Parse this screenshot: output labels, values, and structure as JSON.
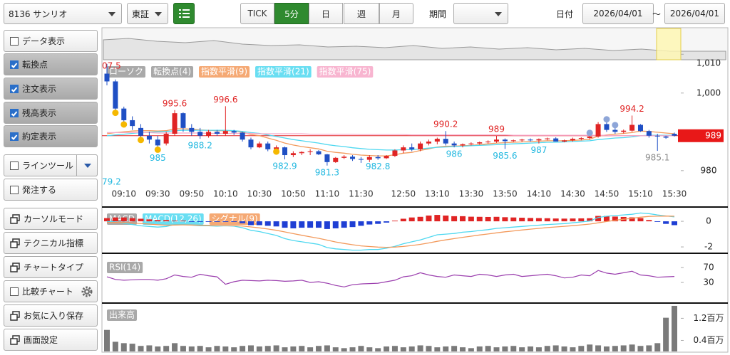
{
  "toolbar": {
    "symbol": "8136 サンリオ",
    "market": "東証",
    "timeframes": [
      "TICK",
      "5分",
      "日",
      "週",
      "月"
    ],
    "active_timeframe": "5分",
    "period_label": "期間",
    "date_label": "日付",
    "date_from": "2026/04/01",
    "separator": "～",
    "date_to": "2026/04/01"
  },
  "sidebar": {
    "buttons": [
      {
        "label": "データ表示",
        "kind": "checkbox",
        "checked": false
      },
      {
        "label": "転換点",
        "kind": "checkbox",
        "checked": true
      },
      {
        "label": "注文表示",
        "kind": "checkbox",
        "checked": true
      },
      {
        "label": "残高表示",
        "kind": "checkbox",
        "checked": true
      },
      {
        "label": "約定表示",
        "kind": "checkbox",
        "checked": true
      },
      {
        "label": "ラインツール",
        "kind": "checkbox",
        "checked": false,
        "dropdown": true
      },
      {
        "label": "発注する",
        "kind": "checkbox",
        "checked": false
      },
      {
        "label": "カーソルモード",
        "kind": "icon"
      },
      {
        "label": "テクニカル指標",
        "kind": "icon"
      },
      {
        "label": "チャートタイプ",
        "kind": "icon"
      },
      {
        "label": "比較チャート",
        "kind": "checkbox",
        "checked": false,
        "settings": true
      },
      {
        "label": "お気に入り保存",
        "kind": "icon"
      },
      {
        "label": "画面設定",
        "kind": "icon"
      }
    ]
  },
  "chart_data": [
    {
      "type": "candlestick",
      "legend": [
        "ローソク",
        "転換点(4)"
      ],
      "categories": [
        null,
        null,
        "09:10",
        null,
        null,
        null,
        "09:30",
        null,
        null,
        null,
        "09:50",
        null,
        null,
        null,
        "10:10",
        null,
        null,
        null,
        "10:30",
        null,
        null,
        null,
        "10:50",
        null,
        null,
        null,
        "11:10",
        null,
        null,
        null,
        "11:30",
        null,
        null,
        null,
        null,
        "12:50",
        null,
        null,
        null,
        "13:10",
        null,
        null,
        null,
        "13:30",
        null,
        null,
        null,
        "13:50",
        null,
        null,
        null,
        "14:10",
        null,
        null,
        null,
        "14:30",
        null,
        null,
        null,
        "14:50",
        null,
        null,
        null,
        "15:10",
        null,
        null,
        null,
        "15:30"
      ],
      "open": [
        1005,
        1003,
        996,
        993,
        991,
        989,
        988,
        987,
        989.5,
        994.8,
        991,
        990,
        989,
        990,
        989.5,
        990.2,
        989.8,
        988,
        986,
        987,
        985.5,
        986,
        984,
        984.5,
        984.8,
        985,
        984.2,
        982.2,
        983.3,
        983.6,
        983,
        982.8,
        983.5,
        983.2,
        983.8,
        985.2,
        986,
        985.5,
        987,
        987.5,
        988.2,
        987,
        986.5,
        986.8,
        987,
        987.3,
        987.5,
        988,
        987.6,
        987.8,
        988,
        987.8,
        988.1,
        988.3,
        987.5,
        987.8,
        988.2,
        988.4,
        988.8,
        992,
        990.5,
        990,
        990.3,
        991.8,
        990.2,
        989,
        988.8,
        989.5
      ],
      "high": [
        1007.5,
        1003.5,
        996.5,
        994,
        992,
        990,
        989,
        990,
        995.6,
        995,
        992,
        991,
        990.5,
        990.5,
        996.6,
        990.5,
        990,
        988.5,
        987.5,
        987.5,
        986.5,
        986.2,
        985,
        985,
        985.5,
        985.3,
        984.3,
        983.5,
        984,
        984,
        983.5,
        984,
        984,
        984,
        985.5,
        986.5,
        987,
        987.5,
        988,
        988.5,
        990.2,
        987.5,
        987,
        987.3,
        987.5,
        987.8,
        989,
        988.3,
        988,
        988.2,
        988.3,
        988.3,
        988.5,
        988.6,
        988,
        988.5,
        988.6,
        989,
        992.5,
        992.5,
        991,
        990.6,
        994.2,
        992,
        990.5,
        989.5,
        989,
        989.8
      ],
      "low": [
        1002,
        995,
        992,
        990.5,
        988,
        987,
        985,
        986.5,
        989,
        990,
        989,
        988.2,
        988.5,
        989,
        989,
        989.2,
        987.5,
        985.5,
        985.8,
        985,
        985,
        982.9,
        983.5,
        984,
        984,
        984,
        981.3,
        982,
        983,
        982.5,
        982,
        982.2,
        982.8,
        983,
        983.5,
        984.5,
        985,
        985,
        986.5,
        986.8,
        986.5,
        986,
        986,
        986.5,
        986.7,
        987,
        987.2,
        985.6,
        987.4,
        987.4,
        987.5,
        987,
        987.8,
        987.5,
        987.3,
        987.5,
        987.8,
        988,
        988.5,
        990,
        989.5,
        989.6,
        990,
        990,
        988.5,
        985.1,
        988.2,
        988.8
      ],
      "close": [
        1003,
        996,
        993,
        991.5,
        989,
        988,
        986.5,
        989.5,
        994.8,
        991,
        990,
        989,
        990,
        989.5,
        990.2,
        989.8,
        988,
        986,
        987,
        985.5,
        986,
        984,
        984.5,
        984.8,
        985,
        984.2,
        982.2,
        983.3,
        983.6,
        983,
        982.8,
        983.5,
        983.2,
        983.8,
        985.2,
        986,
        985.5,
        987,
        987.5,
        988.2,
        987,
        986.5,
        986.8,
        987,
        987.3,
        987.5,
        988,
        987.6,
        987.8,
        988,
        987.8,
        988.1,
        988.3,
        987.5,
        987.8,
        988.2,
        988.4,
        988.8,
        992,
        990.5,
        990,
        990.3,
        991.8,
        990.2,
        989,
        988.8,
        988.5,
        989
      ],
      "series": [
        {
          "name": "指数平滑(9)",
          "color": "#f39a5c",
          "values": [
            989.5,
            989.8,
            990,
            990.2,
            990.3,
            990.3,
            990.2,
            990.3,
            990.8,
            990.8,
            990.7,
            990.5,
            990.4,
            990.3,
            990.3,
            990.2,
            989.9,
            989.3,
            989,
            988.4,
            987.8,
            987.1,
            986.6,
            986.2,
            985.9,
            985.6,
            985,
            984.7,
            984.5,
            984.2,
            984,
            983.9,
            983.8,
            983.8,
            984.1,
            984.5,
            984.7,
            985.2,
            985.6,
            986.1,
            986.3,
            986.3,
            986.4,
            986.5,
            986.7,
            986.9,
            987.1,
            987.2,
            987.3,
            987.4,
            987.5,
            987.6,
            987.7,
            987.7,
            987.7,
            987.8,
            987.9,
            988.1,
            988.9,
            989.2,
            989.4,
            989.6,
            989.8,
            990.2,
            990.1,
            989.9,
            989.7,
            989.5
          ]
        },
        {
          "name": "指数平滑(21)",
          "color": "#4fd8f0",
          "values": [
            989,
            989.2,
            989.4,
            989.6,
            989.8,
            989.9,
            990,
            990.1,
            990.3,
            990.4,
            990.4,
            990.4,
            990.4,
            990.4,
            990.4,
            990.3,
            990.1,
            989.8,
            989.6,
            989.2,
            988.8,
            988.4,
            988,
            987.7,
            987.4,
            987.1,
            986.7,
            986.4,
            986.2,
            985.9,
            985.7,
            985.5,
            985.4,
            985.3,
            985.3,
            985.4,
            985.4,
            985.6,
            985.8,
            986,
            986.1,
            986.2,
            986.3,
            986.4,
            986.5,
            986.6,
            986.7,
            986.8,
            986.9,
            987,
            987.1,
            987.2,
            987.3,
            987.3,
            987.4,
            987.5,
            987.6,
            987.7,
            988,
            988.2,
            988.4,
            988.5,
            988.7,
            989,
            989.1,
            989.1,
            989.1,
            989.1
          ]
        },
        {
          "name": "指数平滑(75)",
          "color": "#f7a8c8",
          "values": [
            989.8,
            989.8,
            989.8,
            989.8,
            989.8,
            989.8,
            989.7,
            989.7,
            989.7,
            989.7,
            989.7,
            989.7,
            989.6,
            989.6,
            989.6,
            989.6,
            989.6,
            989.6,
            989.5,
            989.5,
            989.5,
            989.5,
            989.5,
            989.5,
            989.4,
            989.4,
            989.4,
            989.4,
            989.4,
            989.4,
            989.3,
            989.3,
            989.3,
            989.3,
            989.3,
            989.3,
            989.2,
            989.2,
            989.2,
            989.2,
            989.2,
            989.2,
            989.2,
            989.2,
            989.2,
            989.2,
            989.2,
            989.2,
            989.1,
            989.1,
            989.1,
            989.1,
            989.1,
            989.1,
            989.1,
            989.1,
            989.1,
            989.1,
            989.1,
            989.1,
            989,
            989,
            989,
            989,
            989,
            989,
            989,
            989
          ]
        }
      ],
      "annotations": [
        "07.5",
        "79.2"
      ],
      "last_price": 989,
      "up_color": "#e02424",
      "down_color": "#1f4fc4",
      "ylim": [
        970.8,
        1008.4
      ],
      "yticks": [
        980,
        {
          "value": 1000,
          "label": "1,000"
        },
        {
          "value": 1010,
          "label": "1,010"
        }
      ]
    },
    {
      "type": "macd",
      "title": "MACD",
      "series": [
        {
          "name": "MACD(12,26)",
          "color": "#4fd8f0",
          "values": [
            0,
            -0.05,
            -0.15,
            -0.25,
            -0.35,
            -0.4,
            -0.45,
            -0.4,
            -0.25,
            -0.25,
            -0.3,
            -0.35,
            -0.35,
            -0.38,
            -0.35,
            -0.38,
            -0.5,
            -0.7,
            -0.8,
            -0.95,
            -1.1,
            -1.35,
            -1.5,
            -1.6,
            -1.7,
            -1.8,
            -2.05,
            -2.15,
            -2.2,
            -2.25,
            -2.25,
            -2.2,
            -2.2,
            -2.1,
            -1.95,
            -1.75,
            -1.6,
            -1.45,
            -1.25,
            -1.05,
            -1,
            -0.95,
            -0.85,
            -0.8,
            -0.72,
            -0.65,
            -0.55,
            -0.5,
            -0.45,
            -0.4,
            -0.35,
            -0.3,
            -0.25,
            -0.22,
            -0.18,
            -0.12,
            -0.05,
            0.02,
            0.3,
            0.4,
            0.45,
            0.5,
            0.55,
            0.65,
            0.6,
            0.5,
            0.42,
            0.35
          ]
        },
        {
          "name": "シグナル(9)",
          "color": "#f39a5c",
          "values": [
            -0.1,
            -0.09,
            -0.1,
            -0.13,
            -0.17,
            -0.22,
            -0.27,
            -0.3,
            -0.29,
            -0.28,
            -0.29,
            -0.3,
            -0.31,
            -0.33,
            -0.33,
            -0.34,
            -0.37,
            -0.44,
            -0.51,
            -0.6,
            -0.7,
            -0.83,
            -0.96,
            -1.09,
            -1.21,
            -1.33,
            -1.47,
            -1.61,
            -1.73,
            -1.83,
            -1.92,
            -1.97,
            -2.01,
            -2.03,
            -2.01,
            -1.96,
            -1.89,
            -1.8,
            -1.69,
            -1.56,
            -1.45,
            -1.35,
            -1.25,
            -1.16,
            -1.07,
            -0.99,
            -0.9,
            -0.82,
            -0.75,
            -0.68,
            -0.61,
            -0.55,
            -0.49,
            -0.44,
            -0.39,
            -0.34,
            -0.28,
            -0.22,
            -0.12,
            -0.02,
            0.08,
            0.16,
            0.24,
            0.32,
            0.38,
            0.4,
            0.41,
            0.4
          ]
        }
      ],
      "histogram": [
        0.25,
        0.3,
        0.3,
        0.25,
        0.2,
        0.15,
        0.1,
        0.1,
        0.05,
        0.05,
        -0.05,
        -0.05,
        -0.05,
        -0.05,
        -0.05,
        -0.05,
        -0.15,
        -0.3,
        -0.3,
        -0.35,
        -0.4,
        -0.5,
        -0.55,
        -0.5,
        -0.5,
        -0.5,
        -0.6,
        -0.55,
        -0.5,
        -0.45,
        -0.35,
        -0.25,
        -0.2,
        -0.1,
        0.05,
        0.2,
        0.3,
        0.35,
        0.45,
        0.5,
        0.45,
        0.4,
        0.4,
        0.36,
        0.35,
        0.34,
        0.35,
        0.32,
        0.3,
        0.28,
        0.26,
        0.25,
        0.24,
        0.22,
        0.21,
        0.22,
        0.23,
        0.24,
        0.42,
        0.42,
        0.37,
        0.34,
        0.31,
        0.25,
        0.1,
        -0.05,
        -0.2,
        -0.3
      ],
      "up_color": "#e02424",
      "down_color": "#1f3fd4",
      "ylim": [
        -2.44,
        1.06
      ],
      "yticks": [
        0,
        -2
      ]
    },
    {
      "type": "line",
      "title": "RSI(14)",
      "color": "#9b3fae",
      "values": [
        45,
        38,
        36,
        37,
        38,
        38,
        36,
        40,
        50,
        46,
        44,
        52,
        48,
        45,
        25,
        32,
        36,
        35,
        34,
        36,
        35,
        33,
        34,
        36,
        30,
        32,
        28,
        22,
        18,
        24,
        26,
        27,
        28,
        32,
        36,
        45,
        48,
        56,
        50,
        46,
        44,
        50,
        48,
        46,
        52,
        50,
        46,
        50,
        52,
        46,
        48,
        50,
        52,
        48,
        42,
        44,
        50,
        48,
        62,
        55,
        52,
        56,
        60,
        50,
        48,
        44,
        45,
        46
      ],
      "ylim": [
        -23.3,
        106.2
      ],
      "yticks": [
        70,
        30
      ]
    },
    {
      "type": "bar",
      "title": "出来高",
      "color": "#7a7a7a",
      "values": [
        0.78,
        0.35,
        0.3,
        0.28,
        0.2,
        0.22,
        0.18,
        0.2,
        0.3,
        0.2,
        0.18,
        0.2,
        0.15,
        0.2,
        0.18,
        0.15,
        0.2,
        0.22,
        0.18,
        0.2,
        0.22,
        0.15,
        0.18,
        0.2,
        0.15,
        0.2,
        0.22,
        0.15,
        0.12,
        0.15,
        0.2,
        0.15,
        0.12,
        0.18,
        0.2,
        0.15,
        0.18,
        0.22,
        0.2,
        0.15,
        0.18,
        0.2,
        0.15,
        0.12,
        0.18,
        0.2,
        0.15,
        0.18,
        0.2,
        0.15,
        0.18,
        0.15,
        0.2,
        0.22,
        0.18,
        0.15,
        0.2,
        0.25,
        0.22,
        0.18,
        0.2,
        0.22,
        0.25,
        0.2,
        0.22,
        0.3,
        1.22,
        1.65
      ],
      "ylim": [
        0,
        1.7
      ],
      "yticks": [
        {
          "value": 1.2,
          "label": "1.2百万"
        },
        {
          "value": 0.4,
          "label": "0.4百万"
        }
      ]
    }
  ]
}
